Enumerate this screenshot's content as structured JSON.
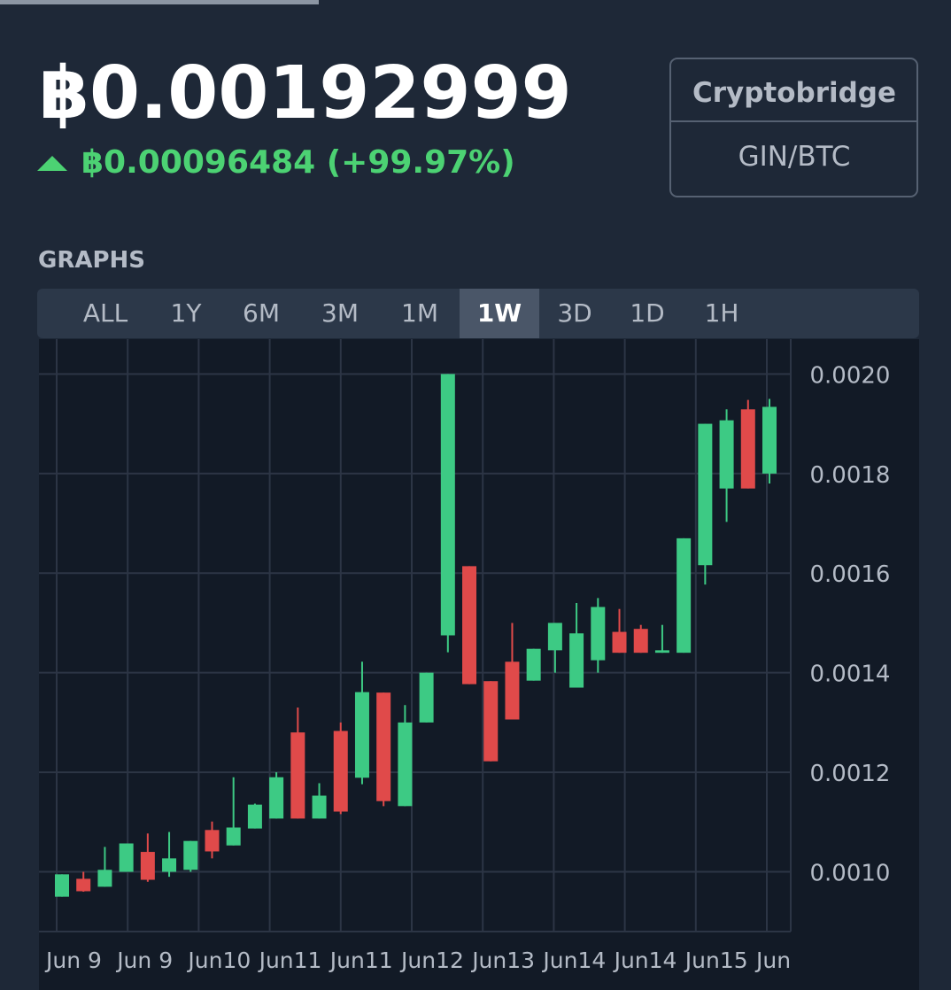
{
  "header": {
    "price": "฿0.00192999",
    "change": "฿0.00096484 (+99.97%)"
  },
  "exchange": {
    "name": "Cryptobridge",
    "pair": "GIN/BTC"
  },
  "graphs": {
    "title": "GRAPHS",
    "tabs": [
      "ALL",
      "1Y",
      "6M",
      "3M",
      "1M",
      "1W",
      "3D",
      "1D",
      "1H"
    ],
    "active_tab": "1W"
  },
  "chart_data": {
    "type": "candlestick",
    "open": [
      0.00095,
      0.000986,
      0.00097,
      0.001,
      0.00104,
      0.001,
      0.001004,
      0.001084,
      0.001053,
      0.001087,
      0.001107,
      0.00128,
      0.001107,
      0.001283,
      0.001189,
      0.00136,
      0.001132,
      0.0013,
      0.001475,
      0.001614,
      0.001383,
      0.001422,
      0.001384,
      0.001445,
      0.00137,
      0.001425,
      0.001482,
      0.001488,
      0.00144,
      0.00144,
      0.001616,
      0.00177,
      0.001929,
      0.0018
    ],
    "high": [
      0.000995,
      0.001,
      0.00105,
      0.001057,
      0.001077,
      0.00108,
      0.001062,
      0.001101,
      0.00119,
      0.001137,
      0.0012,
      0.00133,
      0.001178,
      0.0013,
      0.001422,
      0.00136,
      0.001335,
      0.0014,
      0.002,
      0.001614,
      0.001383,
      0.0015,
      0.001448,
      0.0015,
      0.00154,
      0.00155,
      0.001528,
      0.001496,
      0.001496,
      0.00167,
      0.0019,
      0.001929,
      0.001948,
      0.00195
    ],
    "low": [
      0.00095,
      0.00096,
      0.00097,
      0.001,
      0.00098,
      0.00099,
      0.001,
      0.001027,
      0.001053,
      0.001087,
      0.001107,
      0.001107,
      0.001107,
      0.001116,
      0.001176,
      0.001132,
      0.001132,
      0.0013,
      0.001441,
      0.001377,
      0.001222,
      0.001306,
      0.001384,
      0.0014,
      0.00137,
      0.0014,
      0.00144,
      0.00144,
      0.00144,
      0.00144,
      0.001577,
      0.001703,
      0.00177,
      0.00178
    ],
    "close": [
      0.000995,
      0.000961,
      0.001004,
      0.001057,
      0.000984,
      0.001027,
      0.001062,
      0.001041,
      0.001089,
      0.001135,
      0.00119,
      0.001107,
      0.001153,
      0.001121,
      0.001361,
      0.001142,
      0.0013,
      0.0014,
      0.002,
      0.001377,
      0.001222,
      0.001306,
      0.001448,
      0.0015,
      0.001479,
      0.001532,
      0.00144,
      0.00144,
      0.001445,
      0.00167,
      0.0019,
      0.001907,
      0.00177,
      0.001934
    ],
    "up_color": "#3dca84",
    "down_color": "#e04a4a",
    "ylim": [
      0.00088,
      0.00207
    ],
    "yticks": [
      {
        "value": 0.001,
        "label": "0.0010"
      },
      0.0012,
      0.0014,
      0.0016,
      0.0018,
      {
        "value": 0.002,
        "label": "0.0020"
      }
    ],
    "xtick_labels": [
      "Jun 9",
      "Jun 9",
      "Jun10",
      "Jun11",
      "Jun11",
      "Jun12",
      "Jun13",
      "Jun14",
      "Jun14",
      "Jun15",
      "Jun"
    ],
    "grid": true,
    "y_axis_side": "right"
  }
}
